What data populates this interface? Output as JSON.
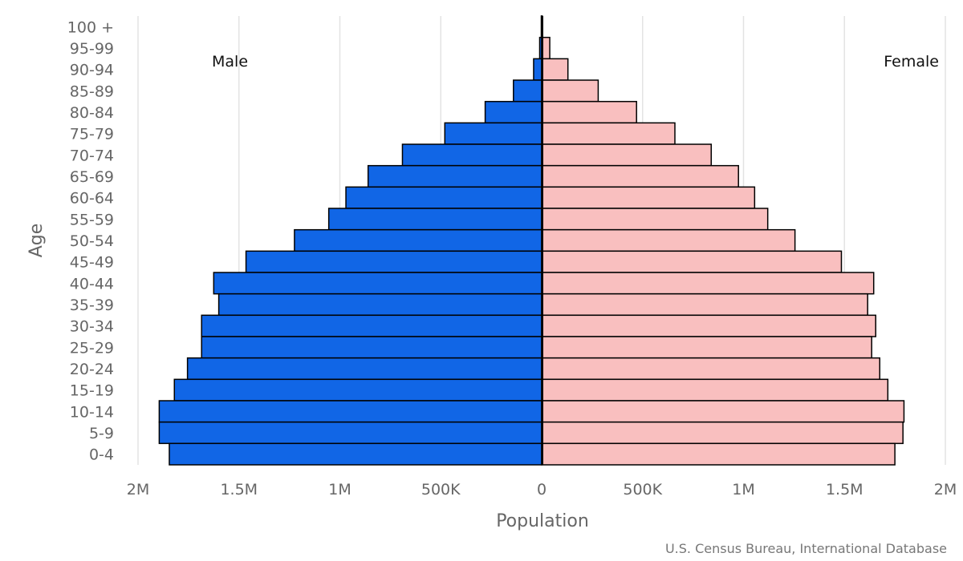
{
  "chart_data": {
    "type": "bar",
    "orientation": "horizontal",
    "subtype": "population-pyramid",
    "title": "",
    "xlabel": "Population",
    "ylabel": "Age",
    "xlim": [
      -2000000,
      2000000
    ],
    "grid": true,
    "x_ticks": [
      {
        "value": -2000000,
        "label": "2M"
      },
      {
        "value": -1500000,
        "label": "1.5M"
      },
      {
        "value": -1000000,
        "label": "1M"
      },
      {
        "value": -500000,
        "label": "500K"
      },
      {
        "value": 0,
        "label": "0"
      },
      {
        "value": 500000,
        "label": "500K"
      },
      {
        "value": 1000000,
        "label": "1M"
      },
      {
        "value": 1500000,
        "label": "1.5M"
      },
      {
        "value": 2000000,
        "label": "2M"
      }
    ],
    "categories": [
      "100 +",
      "95-99",
      "90-94",
      "85-89",
      "80-84",
      "75-79",
      "70-74",
      "65-69",
      "60-64",
      "55-59",
      "50-54",
      "45-49",
      "40-44",
      "35-39",
      "30-34",
      "25-29",
      "20-24",
      "15-19",
      "10-14",
      "5-9",
      "0-4"
    ],
    "series": [
      {
        "name": "Male",
        "color": "#1166e6",
        "values": [
          2000,
          10000,
          40000,
          140000,
          280000,
          480000,
          690000,
          860000,
          970000,
          1055000,
          1225000,
          1465000,
          1625000,
          1600000,
          1685000,
          1685000,
          1755000,
          1820000,
          1895000,
          1895000,
          1845000
        ]
      },
      {
        "name": "Female",
        "color": "#f9bfbf",
        "values": [
          3000,
          40000,
          130000,
          280000,
          470000,
          660000,
          840000,
          975000,
          1055000,
          1120000,
          1255000,
          1485000,
          1645000,
          1615000,
          1655000,
          1635000,
          1675000,
          1715000,
          1795000,
          1790000,
          1750000
        ]
      }
    ],
    "series_labels": {
      "left": "Male",
      "right": "Female"
    },
    "credit": "U.S. Census Bureau, International Database"
  }
}
